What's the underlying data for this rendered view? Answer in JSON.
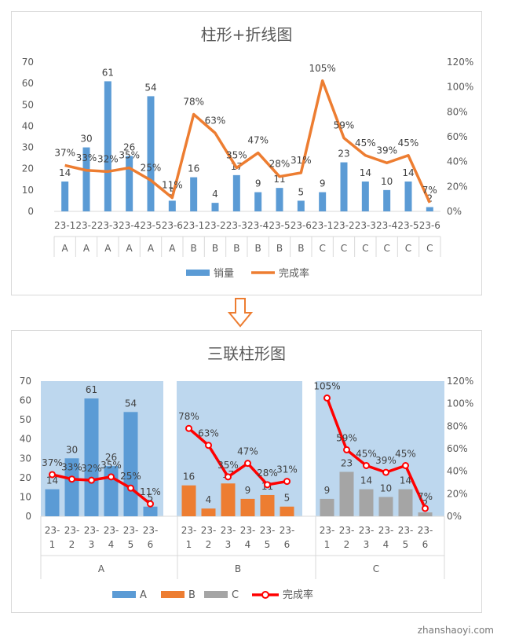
{
  "chart_data": [
    {
      "type": "bar+line",
      "title": "柱形+折线图",
      "categories": [
        "23-1",
        "23-2",
        "23-3",
        "23-4",
        "23-5",
        "23-6",
        "23-1",
        "23-2",
        "23-3",
        "23-4",
        "23-5",
        "23-6",
        "23-1",
        "23-2",
        "23-3",
        "23-4",
        "23-5",
        "23-6"
      ],
      "groups": [
        "A",
        "A",
        "A",
        "A",
        "A",
        "A",
        "B",
        "B",
        "B",
        "B",
        "B",
        "B",
        "C",
        "C",
        "C",
        "C",
        "C",
        "C"
      ],
      "series": [
        {
          "name": "销量",
          "type": "bar",
          "axis": "left",
          "values": [
            14,
            30,
            61,
            26,
            54,
            5,
            16,
            4,
            17,
            9,
            11,
            5,
            9,
            23,
            14,
            10,
            14,
            2
          ]
        },
        {
          "name": "完成率",
          "type": "line",
          "axis": "right",
          "values": [
            0.37,
            0.33,
            0.32,
            0.35,
            0.25,
            0.11,
            0.78,
            0.63,
            0.35,
            0.47,
            0.28,
            0.31,
            1.05,
            0.59,
            0.45,
            0.39,
            0.45,
            0.07
          ]
        }
      ],
      "bar_labels": [
        "14",
        "30",
        "61",
        "26",
        "54",
        "5",
        "16",
        "4",
        "17",
        "9",
        "11",
        "5",
        "9",
        "23",
        "14",
        "10",
        "14",
        "2"
      ],
      "line_labels": [
        "37%",
        "33%",
        "32%",
        "35%",
        "25%",
        "11%",
        "78%",
        "63%",
        "35%",
        "47%",
        "28%",
        "31%",
        "105%",
        "59%",
        "45%",
        "39%",
        "45%",
        "7%"
      ],
      "y_left_ticks": [
        "0",
        "10",
        "20",
        "30",
        "40",
        "50",
        "60",
        "70"
      ],
      "y_right_ticks": [
        "0%",
        "20%",
        "40%",
        "60%",
        "80%",
        "100%",
        "120%"
      ],
      "ylim_left": [
        0,
        70
      ],
      "ylim_right": [
        0,
        1.2
      ],
      "legend_position": "bottom",
      "colors": {
        "bar": "#5b9bd5",
        "line": "#ed7d31"
      }
    },
    {
      "type": "bar+line",
      "title": "三联柱形图",
      "groups": [
        {
          "name": "A",
          "categories": [
            "23-1",
            "23-2",
            "23-3",
            "23-4",
            "23-5",
            "23-6"
          ],
          "values": [
            14,
            30,
            61,
            26,
            54,
            5
          ],
          "rates": [
            0.37,
            0.33,
            0.32,
            0.35,
            0.25,
            0.11
          ],
          "bar_labels": [
            "14",
            "30",
            "61",
            "26",
            "54",
            "5"
          ],
          "rate_labels": [
            "37%",
            "33%",
            "32%",
            "35%",
            "25%",
            "11%"
          ],
          "color": "#5b9bd5"
        },
        {
          "name": "B",
          "categories": [
            "23-1",
            "23-2",
            "23-3",
            "23-4",
            "23-5",
            "23-6"
          ],
          "values": [
            16,
            4,
            17,
            9,
            11,
            5
          ],
          "rates": [
            0.78,
            0.63,
            0.35,
            0.47,
            0.28,
            0.31
          ],
          "bar_labels": [
            "16",
            "4",
            "17",
            "9",
            "11",
            "5"
          ],
          "rate_labels": [
            "78%",
            "63%",
            "35%",
            "47%",
            "28%",
            "31%"
          ],
          "color": "#ed7d31"
        },
        {
          "name": "C",
          "categories": [
            "23-1",
            "23-2",
            "23-3",
            "23-4",
            "23-5",
            "23-6"
          ],
          "values": [
            9,
            23,
            14,
            10,
            14,
            2
          ],
          "rates": [
            1.05,
            0.59,
            0.45,
            0.39,
            0.45,
            0.07
          ],
          "bar_labels": [
            "9",
            "23",
            "14",
            "10",
            "14",
            "2"
          ],
          "rate_labels": [
            "105%",
            "59%",
            "45%",
            "39%",
            "45%",
            "7%"
          ],
          "color": "#a5a5a5"
        }
      ],
      "line_series_name": "完成率",
      "y_left_ticks": [
        "0",
        "10",
        "20",
        "30",
        "40",
        "50",
        "60",
        "70"
      ],
      "y_right_ticks": [
        "0%",
        "20%",
        "40%",
        "60%",
        "80%",
        "100%",
        "120%"
      ],
      "ylim_left": [
        0,
        70
      ],
      "ylim_right": [
        0,
        1.2
      ],
      "legend_position": "bottom",
      "colors": {
        "background": "#bdd7ee",
        "line": "#ff0000"
      }
    }
  ],
  "watermark": "zhanshaoyi.com"
}
